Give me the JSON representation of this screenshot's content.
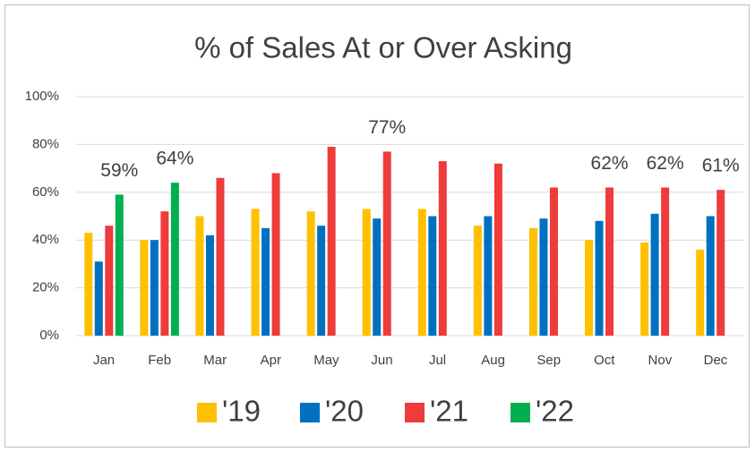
{
  "chart_data": {
    "type": "bar",
    "title": "% of Sales At or Over Asking",
    "categories": [
      "Jan",
      "Feb",
      "Mar",
      "Apr",
      "May",
      "Jun",
      "Jul",
      "Aug",
      "Sep",
      "Oct",
      "Nov",
      "Dec"
    ],
    "series": [
      {
        "name": "'19",
        "color": "#FFC000",
        "values": [
          43,
          40,
          50,
          53,
          52,
          53,
          53,
          46,
          45,
          40,
          39,
          36
        ]
      },
      {
        "name": "'20",
        "color": "#0070C0",
        "values": [
          31,
          40,
          42,
          45,
          46,
          49,
          50,
          50,
          49,
          48,
          51,
          50
        ]
      },
      {
        "name": "'21",
        "color": "#EE3B3B",
        "values": [
          46,
          52,
          66,
          68,
          79,
          77,
          73,
          72,
          62,
          62,
          62,
          61
        ],
        "value_labels": [
          null,
          null,
          null,
          null,
          null,
          "77%",
          null,
          null,
          null,
          "62%",
          "62%",
          "61%"
        ]
      },
      {
        "name": "'22",
        "color": "#00B050",
        "values": [
          59,
          64,
          null,
          null,
          null,
          null,
          null,
          null,
          null,
          null,
          null,
          null
        ],
        "value_labels": [
          "59%",
          "64%",
          null,
          null,
          null,
          null,
          null,
          null,
          null,
          null,
          null,
          null
        ]
      }
    ],
    "ylim": [
      0,
      100
    ],
    "yticks": [
      {
        "value": 0,
        "label": "0%"
      },
      {
        "value": 20,
        "label": "20%"
      },
      {
        "value": 40,
        "label": "40%"
      },
      {
        "value": 60,
        "label": "60%"
      },
      {
        "value": 80,
        "label": "80%"
      },
      {
        "value": 100,
        "label": "100%"
      }
    ],
    "grid": true,
    "legend": "bottom"
  }
}
